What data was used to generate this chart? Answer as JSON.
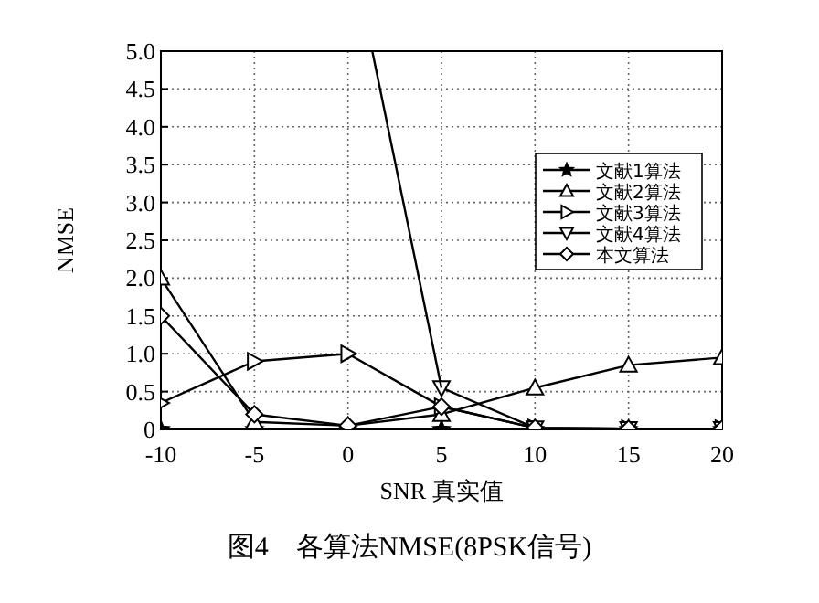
{
  "chart_data": {
    "type": "line",
    "xlabel": "SNR 真实值",
    "ylabel": "NMSE",
    "annotations": [
      "图4　各算法NMSE(8PSK信号)"
    ],
    "x": [
      -10,
      -5,
      0,
      5,
      10,
      15,
      20
    ],
    "xlim": [
      -10,
      20
    ],
    "xticks": [
      -10,
      -5,
      0,
      5,
      10,
      15,
      20
    ],
    "ylim": [
      0,
      5
    ],
    "yticks": [
      {
        "value": 0,
        "label": "0"
      },
      {
        "value": 0.5,
        "label": "0.5"
      },
      {
        "value": 1,
        "label": "1.0"
      },
      {
        "value": 1.5,
        "label": "1.5"
      },
      {
        "value": 2,
        "label": "2.0"
      },
      {
        "value": 2.5,
        "label": "2.5"
      },
      {
        "value": 3,
        "label": "3.0"
      },
      {
        "value": 3.5,
        "label": "3.5"
      },
      {
        "value": 4,
        "label": "4.0"
      },
      {
        "value": 4.5,
        "label": "4.5"
      },
      {
        "value": 5,
        "label": "5.0"
      }
    ],
    "grid": true,
    "legend": "right",
    "line_style": "solid",
    "series": [
      {
        "name": "文献1算法",
        "color": "#000000",
        "marker": "star",
        "values": [
          0,
          0,
          0,
          0,
          0,
          0,
          0
        ]
      },
      {
        "name": "文献2算法",
        "color": "#000000",
        "marker": "triangle",
        "values": [
          2.0,
          0.1,
          0.05,
          0.2,
          0.55,
          0.85,
          0.95
        ]
      },
      {
        "name": "文献3算法",
        "color": "#000000",
        "marker": "triangle-right",
        "values": [
          0.35,
          0.9,
          1.0,
          0.3,
          0.02,
          0.01,
          0.01
        ]
      },
      {
        "name": "文献4算法",
        "color": "#000000",
        "marker": "triangle-down",
        "values": [
          null,
          null,
          null,
          0.55,
          0.02,
          0.01,
          0.01
        ]
      },
      {
        "color": "#000000",
        "marker": "none",
        "x": [
          1.3,
          5
        ],
        "values": [
          5.0,
          0.55
        ]
      },
      {
        "name": "本文算法",
        "color": "#000000",
        "marker": "diamond",
        "values": [
          1.5,
          0.2,
          0.05,
          0.3,
          0.02,
          0.01,
          0.01
        ]
      }
    ]
  }
}
